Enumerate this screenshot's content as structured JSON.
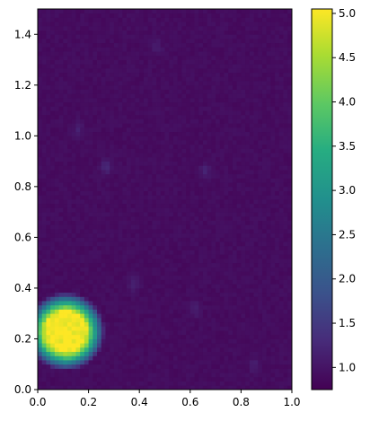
{
  "chart_data": {
    "type": "heatmap",
    "title": "",
    "xlabel": "",
    "ylabel": "",
    "xlim": [
      0,
      1
    ],
    "ylim": [
      0,
      1.5
    ],
    "x_ticks": [
      "0.0",
      "0.2",
      "0.4",
      "0.6",
      "0.8",
      "1.0"
    ],
    "y_ticks": [
      "0.0",
      "0.2",
      "0.4",
      "0.6",
      "0.8",
      "1.0",
      "1.2",
      "1.4"
    ],
    "colormap": "viridis",
    "colorbar": {
      "min": 0.75,
      "max": 5.05,
      "ticks": [
        "1.0",
        "1.5",
        "2.0",
        "2.5",
        "3.0",
        "3.5",
        "4.0",
        "4.5",
        "5.0"
      ]
    },
    "grid": {
      "nx": 60,
      "ny": 90
    },
    "background_value": 0.9,
    "hotspot": {
      "center_x": 0.11,
      "center_y": 0.23,
      "radius": 0.115,
      "peak_value": 5.0
    },
    "noise_patches": [
      {
        "x": 0.27,
        "y": 0.88,
        "value": 1.25
      },
      {
        "x": 0.66,
        "y": 0.86,
        "value": 1.2
      },
      {
        "x": 0.38,
        "y": 0.42,
        "value": 1.2
      },
      {
        "x": 0.62,
        "y": 0.32,
        "value": 1.15
      },
      {
        "x": 0.16,
        "y": 1.03,
        "value": 1.15
      },
      {
        "x": 0.47,
        "y": 1.35,
        "value": 1.1
      },
      {
        "x": 0.85,
        "y": 0.1,
        "value": 1.1
      }
    ]
  }
}
